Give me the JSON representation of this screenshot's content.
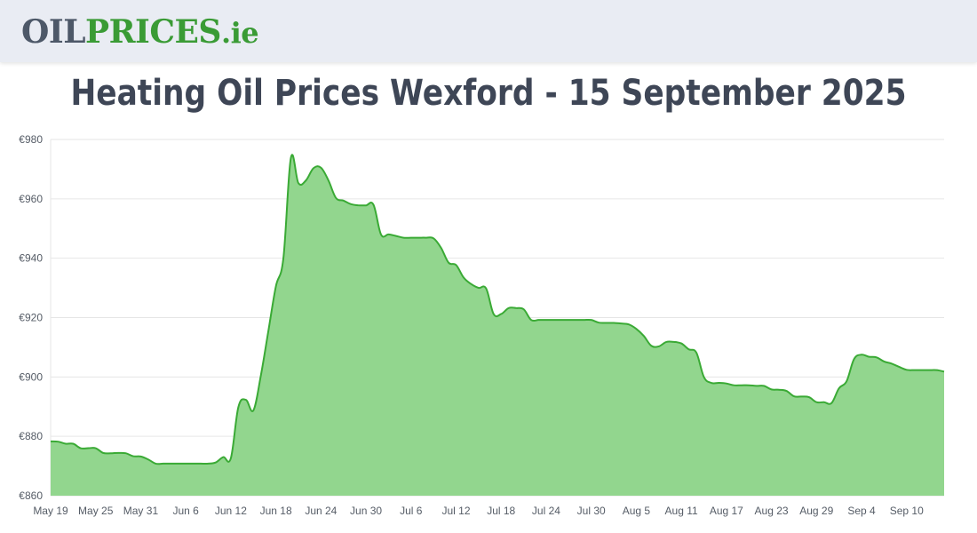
{
  "header": {
    "logo": {
      "part1": "OIL",
      "part2": "PRICES",
      "part3": ".ie"
    }
  },
  "page_title": "Heating Oil Prices Wexford - 15 September 2025",
  "colors": {
    "line": "#3aaa35",
    "fill": "#92d68e",
    "grid": "#e6e6e6",
    "text": "#3e4656",
    "logo_green": "#3a9b35",
    "logo_grey": "#4d5868"
  },
  "chart_data": {
    "type": "area",
    "title": "Heating Oil Prices Wexford - 15 September 2025",
    "xlabel": "",
    "ylabel": "",
    "ylim": [
      860,
      980
    ],
    "y_ticks": [
      {
        "value": 860,
        "label": "€860"
      },
      {
        "value": 880,
        "label": "€880"
      },
      {
        "value": 900,
        "label": "€900"
      },
      {
        "value": 920,
        "label": "€920"
      },
      {
        "value": 940,
        "label": "€940"
      },
      {
        "value": 960,
        "label": "€960"
      },
      {
        "value": 980,
        "label": "€980"
      }
    ],
    "x_start": "2025-05-19",
    "x_end": "2025-09-15",
    "x_ticks": [
      {
        "date": "2025-05-19",
        "label": "May 19"
      },
      {
        "date": "2025-05-25",
        "label": "May 25"
      },
      {
        "date": "2025-05-31",
        "label": "May 31"
      },
      {
        "date": "2025-06-06",
        "label": "Jun 6"
      },
      {
        "date": "2025-06-12",
        "label": "Jun 12"
      },
      {
        "date": "2025-06-18",
        "label": "Jun 18"
      },
      {
        "date": "2025-06-24",
        "label": "Jun 24"
      },
      {
        "date": "2025-06-30",
        "label": "Jun 30"
      },
      {
        "date": "2025-07-06",
        "label": "Jul 6"
      },
      {
        "date": "2025-07-12",
        "label": "Jul 12"
      },
      {
        "date": "2025-07-18",
        "label": "Jul 18"
      },
      {
        "date": "2025-07-24",
        "label": "Jul 24"
      },
      {
        "date": "2025-07-30",
        "label": "Jul 30"
      },
      {
        "date": "2025-08-05",
        "label": "Aug 5"
      },
      {
        "date": "2025-08-11",
        "label": "Aug 11"
      },
      {
        "date": "2025-08-17",
        "label": "Aug 17"
      },
      {
        "date": "2025-08-23",
        "label": "Aug 23"
      },
      {
        "date": "2025-08-29",
        "label": "Aug 29"
      },
      {
        "date": "2025-09-04",
        "label": "Sep 4"
      },
      {
        "date": "2025-09-10",
        "label": "Sep 10"
      }
    ],
    "grid": true,
    "legend": "none",
    "series": [
      {
        "points": [
          [
            "2025-05-19",
            878.3
          ],
          [
            "2025-05-20",
            878.2
          ],
          [
            "2025-05-21",
            877.5
          ],
          [
            "2025-05-22",
            877.5
          ],
          [
            "2025-05-23",
            876.0
          ],
          [
            "2025-05-24",
            876.0
          ],
          [
            "2025-05-25",
            876.0
          ],
          [
            "2025-05-26",
            874.4
          ],
          [
            "2025-05-27",
            874.3
          ],
          [
            "2025-05-28",
            874.4
          ],
          [
            "2025-05-29",
            874.3
          ],
          [
            "2025-05-30",
            873.3
          ],
          [
            "2025-05-31",
            873.2
          ],
          [
            "2025-06-01",
            872.2
          ],
          [
            "2025-06-02",
            870.8
          ],
          [
            "2025-06-03",
            870.8
          ],
          [
            "2025-06-04",
            870.8
          ],
          [
            "2025-06-05",
            870.8
          ],
          [
            "2025-06-06",
            870.8
          ],
          [
            "2025-06-07",
            870.8
          ],
          [
            "2025-06-08",
            870.8
          ],
          [
            "2025-06-09",
            870.8
          ],
          [
            "2025-06-10",
            871.2
          ],
          [
            "2025-06-11",
            873.0
          ],
          [
            "2025-06-12",
            872.6
          ],
          [
            "2025-06-13",
            889.8
          ],
          [
            "2025-06-14",
            892.3
          ],
          [
            "2025-06-15",
            888.7
          ],
          [
            "2025-06-16",
            900.5
          ],
          [
            "2025-06-17",
            915.5
          ],
          [
            "2025-06-18",
            930.5
          ],
          [
            "2025-06-19",
            940.0
          ],
          [
            "2025-06-20",
            973.8
          ],
          [
            "2025-06-21",
            965.3
          ],
          [
            "2025-06-22",
            966.2
          ],
          [
            "2025-06-23",
            970.3
          ],
          [
            "2025-06-24",
            970.5
          ],
          [
            "2025-06-25",
            966.2
          ],
          [
            "2025-06-26",
            960.3
          ],
          [
            "2025-06-27",
            959.4
          ],
          [
            "2025-06-28",
            958.2
          ],
          [
            "2025-06-29",
            957.8
          ],
          [
            "2025-06-30",
            957.8
          ],
          [
            "2025-07-01",
            958.0
          ],
          [
            "2025-07-02",
            948.0
          ],
          [
            "2025-07-03",
            948.0
          ],
          [
            "2025-07-04",
            947.5
          ],
          [
            "2025-07-05",
            946.9
          ],
          [
            "2025-07-06",
            946.9
          ],
          [
            "2025-07-07",
            946.9
          ],
          [
            "2025-07-08",
            946.9
          ],
          [
            "2025-07-09",
            946.7
          ],
          [
            "2025-07-10",
            943.5
          ],
          [
            "2025-07-11",
            938.5
          ],
          [
            "2025-07-12",
            937.7
          ],
          [
            "2025-07-13",
            933.5
          ],
          [
            "2025-07-14",
            931.3
          ],
          [
            "2025-07-15",
            930.0
          ],
          [
            "2025-07-16",
            929.8
          ],
          [
            "2025-07-17",
            921.2
          ],
          [
            "2025-07-18",
            921.2
          ],
          [
            "2025-07-19",
            923.2
          ],
          [
            "2025-07-20",
            923.2
          ],
          [
            "2025-07-21",
            922.8
          ],
          [
            "2025-07-22",
            919.2
          ],
          [
            "2025-07-23",
            919.2
          ],
          [
            "2025-07-24",
            919.2
          ],
          [
            "2025-07-25",
            919.2
          ],
          [
            "2025-07-26",
            919.2
          ],
          [
            "2025-07-27",
            919.2
          ],
          [
            "2025-07-28",
            919.2
          ],
          [
            "2025-07-29",
            919.2
          ],
          [
            "2025-07-30",
            919.2
          ],
          [
            "2025-07-31",
            918.3
          ],
          [
            "2025-08-01",
            918.2
          ],
          [
            "2025-08-02",
            918.2
          ],
          [
            "2025-08-03",
            918.0
          ],
          [
            "2025-08-04",
            917.7
          ],
          [
            "2025-08-05",
            916.2
          ],
          [
            "2025-08-06",
            913.8
          ],
          [
            "2025-08-07",
            910.5
          ],
          [
            "2025-08-08",
            910.3
          ],
          [
            "2025-08-09",
            911.8
          ],
          [
            "2025-08-10",
            911.8
          ],
          [
            "2025-08-11",
            911.3
          ],
          [
            "2025-08-12",
            909.3
          ],
          [
            "2025-08-13",
            908.2
          ],
          [
            "2025-08-14",
            900.0
          ],
          [
            "2025-08-15",
            898.0
          ],
          [
            "2025-08-16",
            898.0
          ],
          [
            "2025-08-17",
            897.8
          ],
          [
            "2025-08-18",
            897.2
          ],
          [
            "2025-08-19",
            897.2
          ],
          [
            "2025-08-20",
            897.2
          ],
          [
            "2025-08-21",
            897.0
          ],
          [
            "2025-08-22",
            897.0
          ],
          [
            "2025-08-23",
            895.8
          ],
          [
            "2025-08-24",
            895.7
          ],
          [
            "2025-08-25",
            895.3
          ],
          [
            "2025-08-26",
            893.5
          ],
          [
            "2025-08-27",
            893.4
          ],
          [
            "2025-08-28",
            893.2
          ],
          [
            "2025-08-29",
            891.5
          ],
          [
            "2025-08-30",
            891.5
          ],
          [
            "2025-08-31",
            891.2
          ],
          [
            "2025-09-01",
            896.2
          ],
          [
            "2025-09-02",
            898.5
          ],
          [
            "2025-09-03",
            906.0
          ],
          [
            "2025-09-04",
            907.5
          ],
          [
            "2025-09-05",
            906.8
          ],
          [
            "2025-09-06",
            906.6
          ],
          [
            "2025-09-07",
            905.2
          ],
          [
            "2025-09-08",
            904.5
          ],
          [
            "2025-09-09",
            903.4
          ],
          [
            "2025-09-10",
            902.4
          ],
          [
            "2025-09-11",
            902.3
          ],
          [
            "2025-09-12",
            902.3
          ],
          [
            "2025-09-13",
            902.3
          ],
          [
            "2025-09-14",
            902.3
          ],
          [
            "2025-09-15",
            901.8
          ]
        ]
      }
    ]
  }
}
